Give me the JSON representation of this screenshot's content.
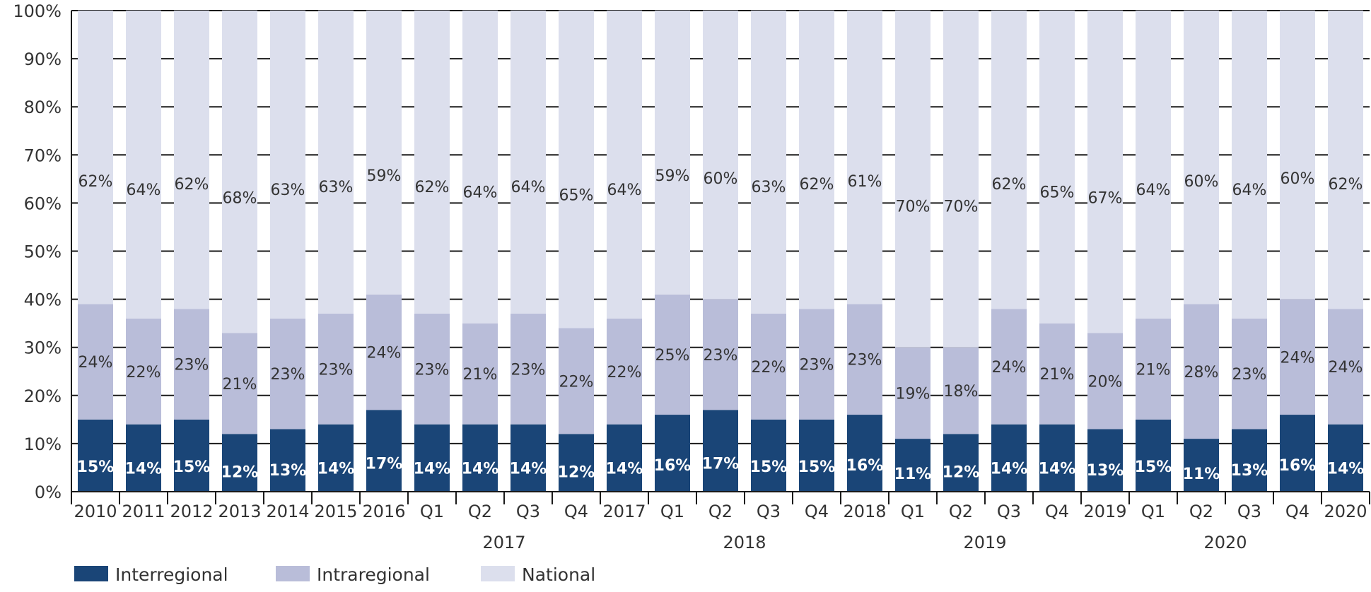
{
  "chart_data": {
    "type": "bar",
    "stacked": true,
    "title": "",
    "xlabel": "",
    "ylabel": "",
    "ylim": [
      0,
      100
    ],
    "yticks": [
      "0%",
      "10%",
      "20%",
      "30%",
      "40%",
      "50%",
      "60%",
      "70%",
      "80%",
      "90%",
      "100%"
    ],
    "grid": true,
    "legend_position": "bottom-left",
    "categories": [
      "2010",
      "2011",
      "2012",
      "2013",
      "2014",
      "2015",
      "2016",
      "Q1",
      "Q2",
      "Q3",
      "Q4",
      "2017",
      "Q1",
      "Q2",
      "Q3",
      "Q4",
      "2018",
      "Q1",
      "Q2",
      "Q3",
      "Q4",
      "2019",
      "Q1",
      "Q2",
      "Q3",
      "Q4",
      "2020"
    ],
    "category_groups": [
      {
        "label": "2017",
        "from": 7,
        "to": 10
      },
      {
        "label": "2018",
        "from": 12,
        "to": 15
      },
      {
        "label": "2019",
        "from": 17,
        "to": 20
      },
      {
        "label": "2020",
        "from": 22,
        "to": 25
      }
    ],
    "series": [
      {
        "name": "Interregional",
        "color": "#1a4577",
        "values": [
          15,
          14,
          15,
          12,
          13,
          14,
          17,
          14,
          14,
          14,
          12,
          14,
          16,
          17,
          15,
          15,
          16,
          11,
          12,
          14,
          14,
          13,
          15,
          11,
          13,
          16,
          14
        ]
      },
      {
        "name": "Intraregional",
        "color": "#b9bdd9",
        "values": [
          24,
          22,
          23,
          21,
          23,
          23,
          24,
          23,
          21,
          23,
          22,
          22,
          25,
          23,
          22,
          23,
          23,
          19,
          18,
          24,
          21,
          20,
          21,
          28,
          23,
          24,
          24
        ]
      },
      {
        "name": "National",
        "color": "#dcdfed",
        "values": [
          62,
          64,
          62,
          68,
          63,
          63,
          59,
          62,
          64,
          64,
          65,
          64,
          59,
          60,
          63,
          62,
          61,
          70,
          70,
          62,
          65,
          67,
          64,
          60,
          64,
          60,
          62
        ]
      }
    ]
  }
}
